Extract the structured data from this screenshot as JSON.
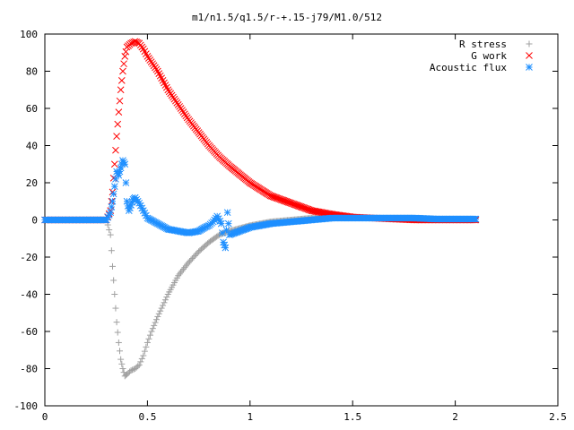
{
  "chart_data": {
    "type": "scatter",
    "title": "m1/n1.5/q1.5/r-+.15-j79/M1.0/512",
    "xlabel": "",
    "ylabel": "",
    "xlim": [
      0,
      2.5
    ],
    "ylim": [
      -100,
      100
    ],
    "x_ticks": [
      0,
      0.5,
      1,
      1.5,
      2,
      2.5
    ],
    "x_tick_labels": [
      "0",
      "0.5",
      "1",
      "1.5",
      "2",
      "2.5"
    ],
    "y_ticks": [
      -100,
      -80,
      -60,
      -40,
      -20,
      0,
      20,
      40,
      60,
      80,
      100
    ],
    "y_tick_labels": [
      "-100",
      "-80",
      "-60",
      "-40",
      "-20",
      "0",
      "20",
      "40",
      "60",
      "80",
      "100"
    ],
    "grid": false,
    "legend_position": "top-right",
    "series": [
      {
        "name": "R stress",
        "marker": "plus",
        "color": "#a0a0a0",
        "points": [
          [
            0.0,
            0
          ],
          [
            0.1,
            0
          ],
          [
            0.2,
            0
          ],
          [
            0.3,
            0
          ],
          [
            0.32,
            -8
          ],
          [
            0.33,
            -25
          ],
          [
            0.34,
            -40
          ],
          [
            0.35,
            -55
          ],
          [
            0.36,
            -66
          ],
          [
            0.37,
            -75
          ],
          [
            0.38,
            -80
          ],
          [
            0.39,
            -84
          ],
          [
            0.4,
            -83
          ],
          [
            0.42,
            -81
          ],
          [
            0.44,
            -80
          ],
          [
            0.46,
            -78
          ],
          [
            0.48,
            -73
          ],
          [
            0.5,
            -66
          ],
          [
            0.52,
            -60
          ],
          [
            0.55,
            -52
          ],
          [
            0.6,
            -40
          ],
          [
            0.65,
            -30
          ],
          [
            0.7,
            -23
          ],
          [
            0.75,
            -17
          ],
          [
            0.8,
            -12
          ],
          [
            0.85,
            -8
          ],
          [
            0.9,
            -6
          ],
          [
            1.0,
            -3
          ],
          [
            1.1,
            -1
          ],
          [
            1.2,
            0
          ],
          [
            1.3,
            1
          ],
          [
            1.4,
            1
          ],
          [
            1.5,
            1
          ],
          [
            1.6,
            1
          ],
          [
            1.7,
            1
          ],
          [
            1.8,
            1
          ],
          [
            1.9,
            0.5
          ],
          [
            2.0,
            0.5
          ],
          [
            2.1,
            0.5
          ]
        ]
      },
      {
        "name": "G work",
        "marker": "cross",
        "color": "#ff0000",
        "points": [
          [
            0.0,
            0
          ],
          [
            0.1,
            0
          ],
          [
            0.2,
            0
          ],
          [
            0.3,
            0
          ],
          [
            0.32,
            5
          ],
          [
            0.33,
            15
          ],
          [
            0.34,
            30
          ],
          [
            0.35,
            45
          ],
          [
            0.36,
            58
          ],
          [
            0.37,
            70
          ],
          [
            0.38,
            80
          ],
          [
            0.39,
            88
          ],
          [
            0.4,
            93
          ],
          [
            0.42,
            95
          ],
          [
            0.44,
            96
          ],
          [
            0.46,
            95
          ],
          [
            0.48,
            92
          ],
          [
            0.5,
            88
          ],
          [
            0.55,
            80
          ],
          [
            0.6,
            70
          ],
          [
            0.65,
            62
          ],
          [
            0.7,
            54
          ],
          [
            0.75,
            47
          ],
          [
            0.8,
            40
          ],
          [
            0.85,
            34
          ],
          [
            0.9,
            29
          ],
          [
            1.0,
            20
          ],
          [
            1.1,
            13
          ],
          [
            1.2,
            9
          ],
          [
            1.3,
            5
          ],
          [
            1.4,
            3
          ],
          [
            1.5,
            1.5
          ],
          [
            1.6,
            1
          ],
          [
            1.7,
            0.5
          ],
          [
            1.8,
            0
          ],
          [
            1.9,
            0
          ],
          [
            2.0,
            0
          ],
          [
            2.1,
            0
          ]
        ]
      },
      {
        "name": "Acoustic flux",
        "marker": "star",
        "color": "#1e8fff",
        "points": [
          [
            0.0,
            0
          ],
          [
            0.1,
            0
          ],
          [
            0.2,
            0
          ],
          [
            0.3,
            0
          ],
          [
            0.32,
            4
          ],
          [
            0.33,
            10
          ],
          [
            0.34,
            18
          ],
          [
            0.35,
            26
          ],
          [
            0.36,
            24
          ],
          [
            0.37,
            28
          ],
          [
            0.38,
            32
          ],
          [
            0.39,
            30
          ],
          [
            0.4,
            10
          ],
          [
            0.41,
            5
          ],
          [
            0.42,
            8
          ],
          [
            0.43,
            11
          ],
          [
            0.44,
            12
          ],
          [
            0.46,
            9
          ],
          [
            0.48,
            5
          ],
          [
            0.5,
            1
          ],
          [
            0.55,
            -2
          ],
          [
            0.6,
            -5
          ],
          [
            0.65,
            -6
          ],
          [
            0.7,
            -7
          ],
          [
            0.75,
            -6
          ],
          [
            0.78,
            -4
          ],
          [
            0.8,
            -3
          ],
          [
            0.82,
            -1
          ],
          [
            0.84,
            2
          ],
          [
            0.86,
            -2
          ],
          [
            0.87,
            -12
          ],
          [
            0.88,
            -15
          ],
          [
            0.89,
            4
          ],
          [
            0.9,
            -8
          ],
          [
            0.95,
            -6
          ],
          [
            1.0,
            -4
          ],
          [
            1.1,
            -2
          ],
          [
            1.2,
            -1
          ],
          [
            1.3,
            0
          ],
          [
            1.4,
            1
          ],
          [
            1.5,
            1
          ],
          [
            1.6,
            1
          ],
          [
            1.7,
            1
          ],
          [
            1.8,
            1
          ],
          [
            1.9,
            0.5
          ],
          [
            2.0,
            0.5
          ],
          [
            2.1,
            0.5
          ]
        ]
      }
    ]
  }
}
